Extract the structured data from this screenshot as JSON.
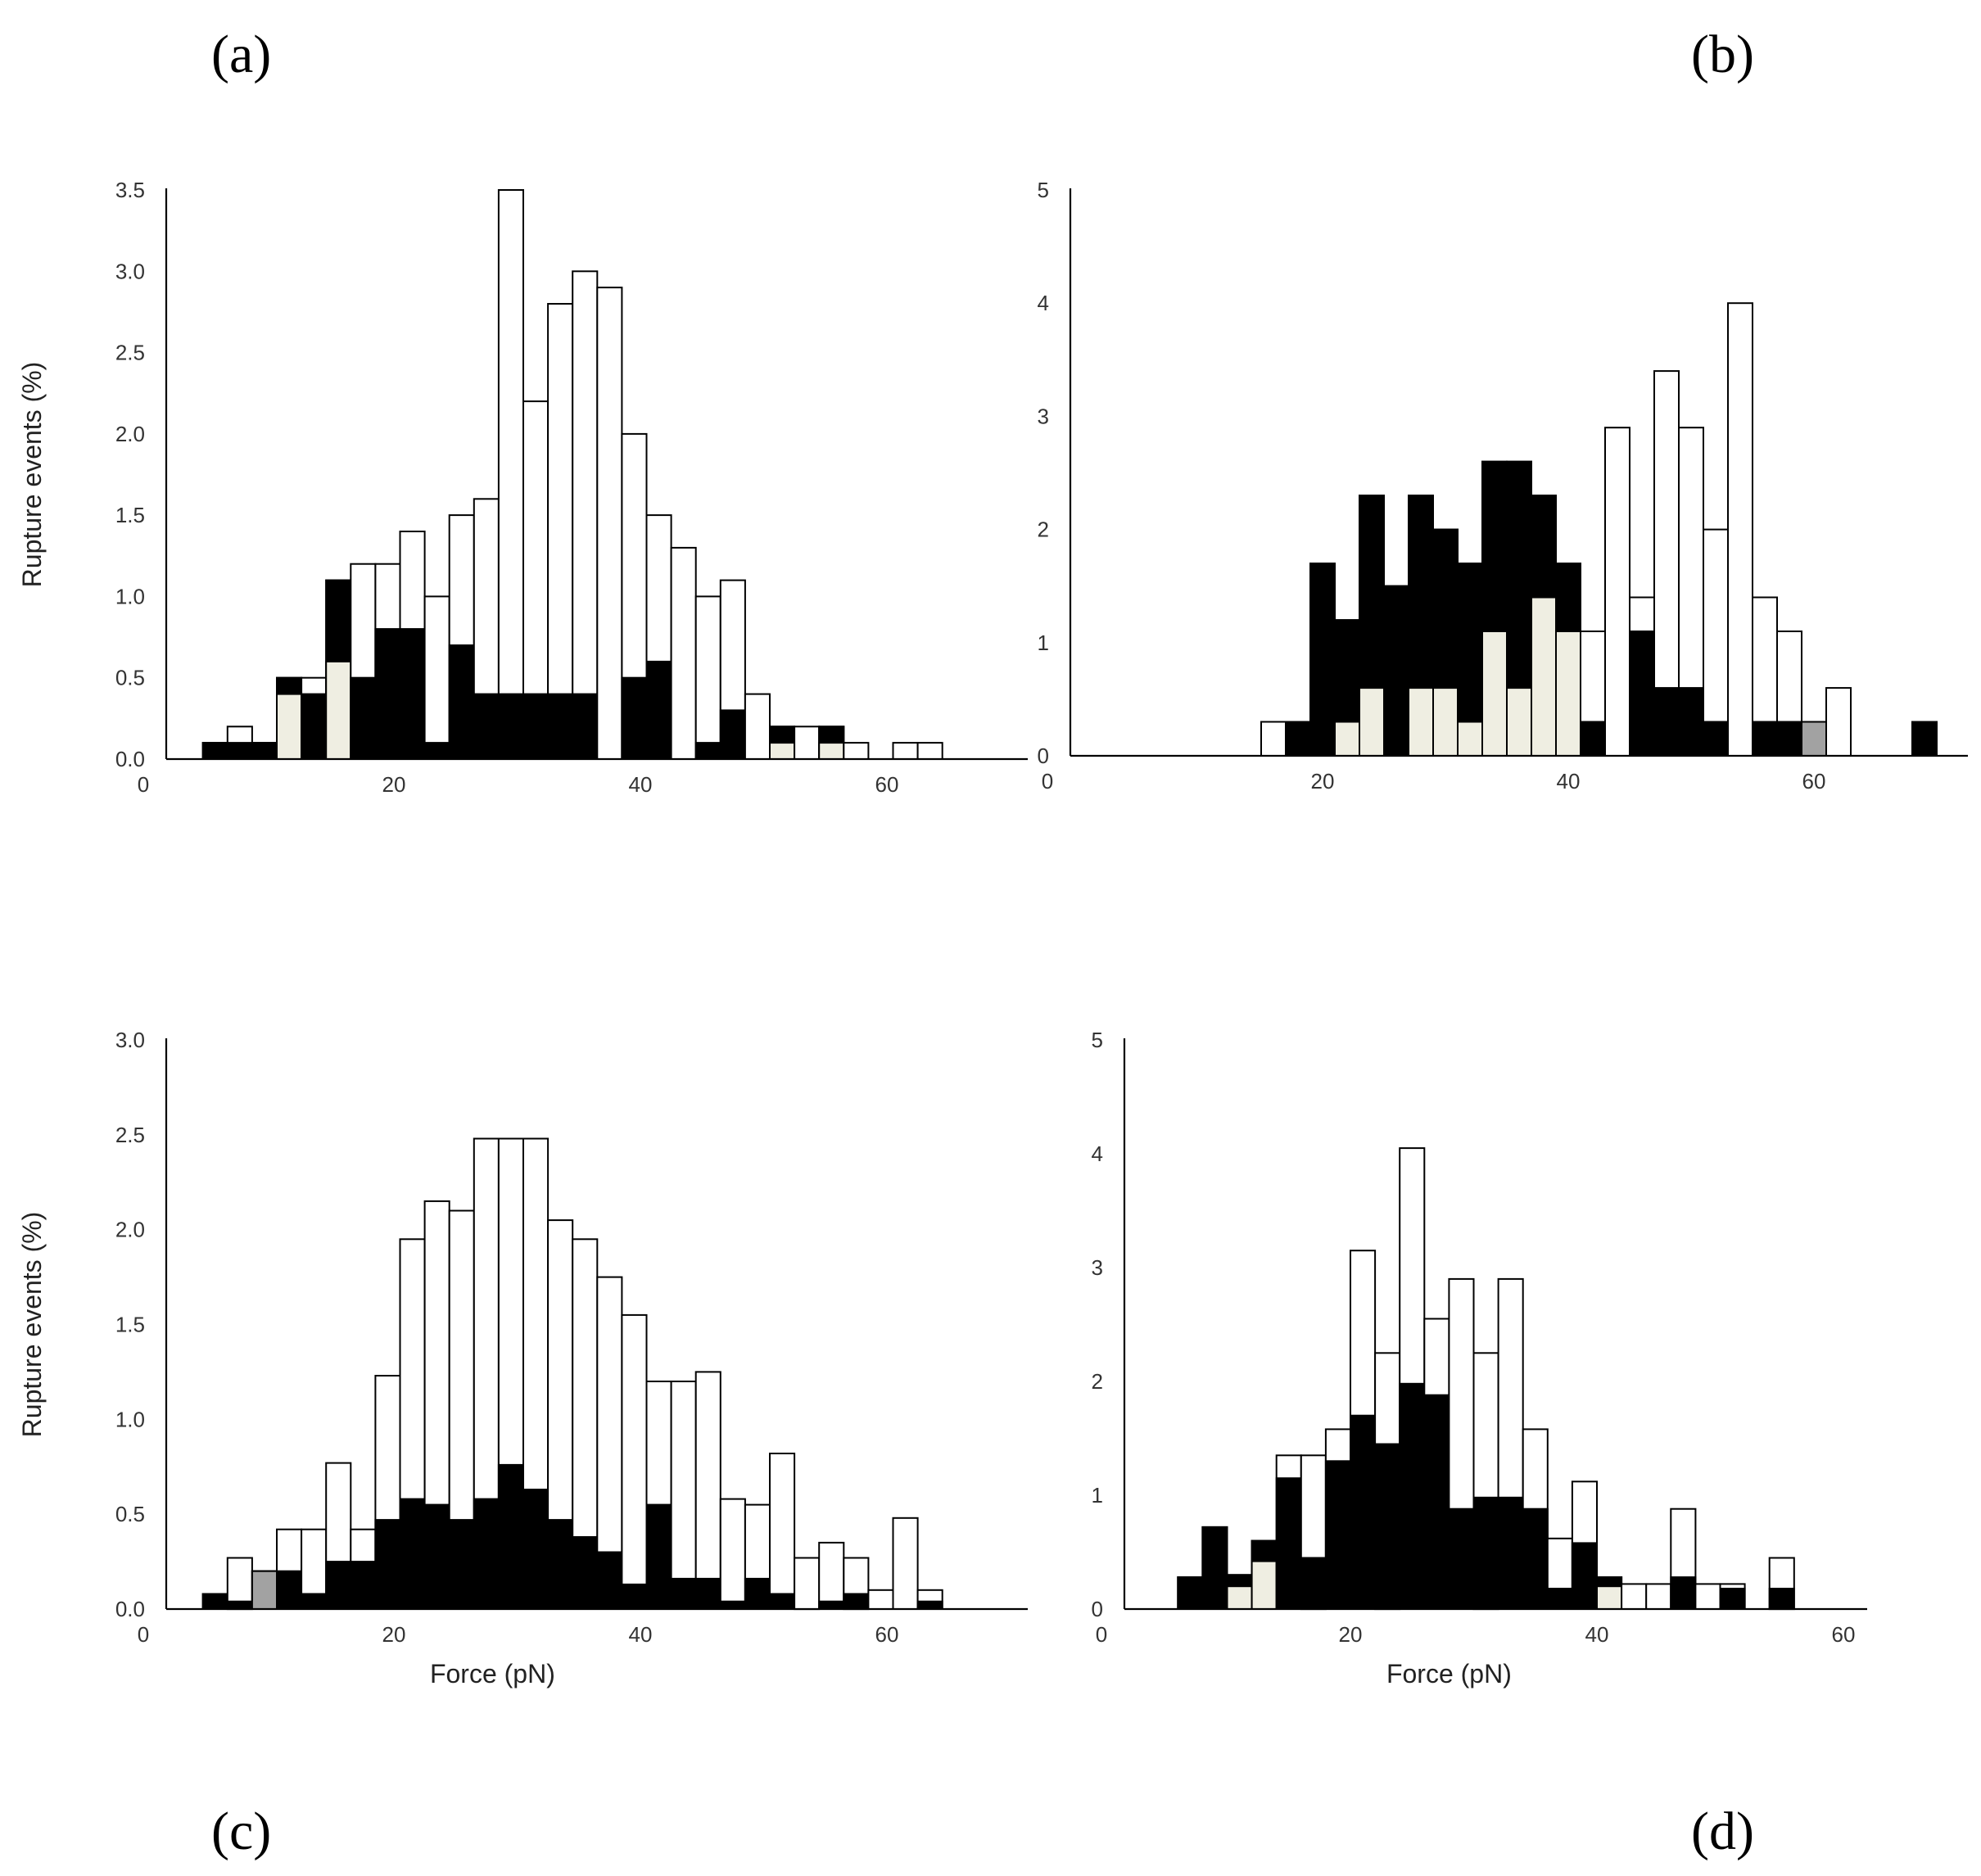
{
  "chart_data": [
    {
      "panel": "(a)",
      "type": "bar",
      "ylabel": "Rupture events (%)",
      "xlabel": "",
      "xlim": [
        0,
        70
      ],
      "ylim": [
        0,
        3.5
      ],
      "x_ticks": [
        0,
        20,
        40,
        60
      ],
      "y_ticks": [
        "0.0",
        "0.5",
        "1.0",
        "1.5",
        "2.0",
        "2.5",
        "3.0",
        "3.5"
      ],
      "bin_width": 2,
      "bins": [
        {
          "x": 5.5,
          "total": 0.1,
          "black": 0.1,
          "light": 0,
          "gray": 0
        },
        {
          "x": 7.5,
          "total": 0.2,
          "black": 0.1,
          "light": 0,
          "gray": 0
        },
        {
          "x": 9.5,
          "total": 0.1,
          "black": 0.1,
          "light": 0,
          "gray": 0
        },
        {
          "x": 11.5,
          "total": 0.5,
          "black": 0.5,
          "light": 0.4,
          "gray": 0
        },
        {
          "x": 13.5,
          "total": 0.5,
          "black": 0.4,
          "light": 0,
          "gray": 0
        },
        {
          "x": 15.5,
          "total": 1.1,
          "black": 1.1,
          "light": 0.6,
          "gray": 0
        },
        {
          "x": 17.5,
          "total": 1.2,
          "black": 0.5,
          "light": 0,
          "gray": 0
        },
        {
          "x": 19.5,
          "total": 1.2,
          "black": 0.8,
          "light": 0,
          "gray": 0
        },
        {
          "x": 21.5,
          "total": 1.4,
          "black": 0.8,
          "light": 0,
          "gray": 0
        },
        {
          "x": 23.5,
          "total": 1.0,
          "black": 0.1,
          "light": 0,
          "gray": 0
        },
        {
          "x": 25.5,
          "total": 1.5,
          "black": 0.7,
          "light": 0,
          "gray": 0
        },
        {
          "x": 27.5,
          "total": 1.6,
          "black": 0.4,
          "light": 0,
          "gray": 0
        },
        {
          "x": 29.5,
          "total": 3.5,
          "black": 0.4,
          "light": 0,
          "gray": 0
        },
        {
          "x": 31.5,
          "total": 2.2,
          "black": 0.4,
          "light": 0,
          "gray": 0
        },
        {
          "x": 33.5,
          "total": 2.8,
          "black": 0.4,
          "light": 0,
          "gray": 0
        },
        {
          "x": 35.5,
          "total": 3.0,
          "black": 0.4,
          "light": 0,
          "gray": 0
        },
        {
          "x": 37.5,
          "total": 2.9,
          "black": 0,
          "light": 0,
          "gray": 0
        },
        {
          "x": 39.5,
          "total": 2.0,
          "black": 0.5,
          "light": 0,
          "gray": 0
        },
        {
          "x": 41.5,
          "total": 1.5,
          "black": 0.6,
          "light": 0,
          "gray": 0
        },
        {
          "x": 43.5,
          "total": 1.3,
          "black": 0,
          "light": 0,
          "gray": 0
        },
        {
          "x": 45.5,
          "total": 1.0,
          "black": 0.1,
          "light": 0,
          "gray": 0
        },
        {
          "x": 47.5,
          "total": 1.1,
          "black": 0.3,
          "light": 0,
          "gray": 0
        },
        {
          "x": 49.5,
          "total": 0.4,
          "black": 0,
          "light": 0,
          "gray": 0
        },
        {
          "x": 51.5,
          "total": 0.2,
          "black": 0.2,
          "light": 0.1,
          "gray": 0
        },
        {
          "x": 53.5,
          "total": 0.2,
          "black": 0,
          "light": 0,
          "gray": 0
        },
        {
          "x": 55.5,
          "total": 0.2,
          "black": 0.2,
          "light": 0.1,
          "gray": 0
        },
        {
          "x": 57.5,
          "total": 0.1,
          "black": 0,
          "light": 0,
          "gray": 0
        },
        {
          "x": 61.5,
          "total": 0.1,
          "black": 0,
          "light": 0,
          "gray": 0
        },
        {
          "x": 63.5,
          "total": 0.1,
          "black": 0,
          "light": 0,
          "gray": 0
        }
      ]
    },
    {
      "panel": "(b)",
      "type": "bar",
      "ylabel": "",
      "xlabel": "",
      "xlim": [
        0,
        72
      ],
      "ylim": [
        0,
        5
      ],
      "x_ticks": [
        0,
        20,
        40,
        60
      ],
      "y_ticks": [
        "0",
        "1",
        "2",
        "3",
        "4",
        "5"
      ],
      "bin_width": 2,
      "bins": [
        {
          "x": 16,
          "total": 0.3,
          "black": 0,
          "light": 0,
          "gray": 0
        },
        {
          "x": 18,
          "total": 0.3,
          "black": 0.3,
          "light": 0,
          "gray": 0
        },
        {
          "x": 20,
          "total": 1.7,
          "black": 1.7,
          "light": 0,
          "gray": 0
        },
        {
          "x": 22,
          "total": 1.2,
          "black": 1.2,
          "light": 0.3,
          "gray": 0
        },
        {
          "x": 24,
          "total": 2.3,
          "black": 2.3,
          "light": 0.6,
          "gray": 0
        },
        {
          "x": 26,
          "total": 1.5,
          "black": 1.5,
          "light": 0,
          "gray": 0
        },
        {
          "x": 28,
          "total": 2.3,
          "black": 2.3,
          "light": 0.6,
          "gray": 0
        },
        {
          "x": 30,
          "total": 2.0,
          "black": 2.0,
          "light": 0.6,
          "gray": 0
        },
        {
          "x": 32,
          "total": 1.7,
          "black": 1.7,
          "light": 0.3,
          "gray": 0
        },
        {
          "x": 34,
          "total": 2.6,
          "black": 2.6,
          "light": 1.1,
          "gray": 0
        },
        {
          "x": 36,
          "total": 2.6,
          "black": 2.6,
          "light": 0.6,
          "gray": 0
        },
        {
          "x": 38,
          "total": 2.3,
          "black": 2.3,
          "light": 1.4,
          "gray": 0
        },
        {
          "x": 40,
          "total": 1.7,
          "black": 1.7,
          "light": 1.1,
          "gray": 0
        },
        {
          "x": 42,
          "total": 1.1,
          "black": 0.3,
          "light": 0,
          "gray": 0
        },
        {
          "x": 44,
          "total": 2.9,
          "black": 0,
          "light": 0,
          "gray": 0
        },
        {
          "x": 46,
          "total": 1.4,
          "black": 1.1,
          "light": 0,
          "gray": 0
        },
        {
          "x": 48,
          "total": 3.4,
          "black": 0.6,
          "light": 0,
          "gray": 0
        },
        {
          "x": 50,
          "total": 2.9,
          "black": 0.6,
          "light": 0,
          "gray": 0
        },
        {
          "x": 52,
          "total": 2.0,
          "black": 0.3,
          "light": 0,
          "gray": 0
        },
        {
          "x": 54,
          "total": 4.0,
          "black": 0,
          "light": 0,
          "gray": 0
        },
        {
          "x": 56,
          "total": 1.4,
          "black": 0.3,
          "light": 0,
          "gray": 0
        },
        {
          "x": 58,
          "total": 1.1,
          "black": 0.3,
          "light": 0,
          "gray": 0
        },
        {
          "x": 60,
          "total": 0.3,
          "black": 0.3,
          "light": 0,
          "gray": 0.3
        },
        {
          "x": 62,
          "total": 0.6,
          "black": 0,
          "light": 0,
          "gray": 0
        },
        {
          "x": 69,
          "total": 0.3,
          "black": 0.3,
          "light": 0,
          "gray": 0
        }
      ]
    },
    {
      "panel": "(c)",
      "type": "bar",
      "ylabel": "Rupture events (%)",
      "xlabel": "Force (pN)",
      "xlim": [
        0,
        70
      ],
      "ylim": [
        0,
        3.0
      ],
      "x_ticks": [
        0,
        20,
        40,
        60
      ],
      "y_ticks": [
        "0.0",
        "0.5",
        "1.0",
        "1.5",
        "2.0",
        "2.5",
        "3.0"
      ],
      "bin_width": 2,
      "bins": [
        {
          "x": 5.5,
          "total": 0.08,
          "black": 0.08,
          "light": 0,
          "gray": 0
        },
        {
          "x": 7.5,
          "total": 0.27,
          "black": 0.04,
          "light": 0,
          "gray": 0
        },
        {
          "x": 9.5,
          "total": 0.2,
          "black": 0.2,
          "light": 0,
          "gray": 0.2
        },
        {
          "x": 11.5,
          "total": 0.42,
          "black": 0.2,
          "light": 0,
          "gray": 0
        },
        {
          "x": 13.5,
          "total": 0.42,
          "black": 0.08,
          "light": 0,
          "gray": 0
        },
        {
          "x": 15.5,
          "total": 0.77,
          "black": 0.25,
          "light": 0,
          "gray": 0
        },
        {
          "x": 17.5,
          "total": 0.42,
          "black": 0.25,
          "light": 0,
          "gray": 0
        },
        {
          "x": 19.5,
          "total": 1.23,
          "black": 0.47,
          "light": 0,
          "gray": 0
        },
        {
          "x": 21.5,
          "total": 1.95,
          "black": 0.58,
          "light": 0,
          "gray": 0
        },
        {
          "x": 23.5,
          "total": 2.15,
          "black": 0.55,
          "light": 0,
          "gray": 0
        },
        {
          "x": 25.5,
          "total": 2.1,
          "black": 0.47,
          "light": 0,
          "gray": 0
        },
        {
          "x": 27.5,
          "total": 2.48,
          "black": 0.58,
          "light": 0,
          "gray": 0
        },
        {
          "x": 29.5,
          "total": 2.48,
          "black": 0.76,
          "light": 0,
          "gray": 0
        },
        {
          "x": 31.5,
          "total": 2.48,
          "black": 0.63,
          "light": 0,
          "gray": 0
        },
        {
          "x": 33.5,
          "total": 2.05,
          "black": 0.47,
          "light": 0,
          "gray": 0
        },
        {
          "x": 35.5,
          "total": 1.95,
          "black": 0.38,
          "light": 0,
          "gray": 0
        },
        {
          "x": 37.5,
          "total": 1.75,
          "black": 0.3,
          "light": 0,
          "gray": 0
        },
        {
          "x": 39.5,
          "total": 1.55,
          "black": 0.13,
          "light": 0,
          "gray": 0
        },
        {
          "x": 41.5,
          "total": 1.2,
          "black": 0.55,
          "light": 0,
          "gray": 0
        },
        {
          "x": 43.5,
          "total": 1.2,
          "black": 0.16,
          "light": 0,
          "gray": 0
        },
        {
          "x": 45.5,
          "total": 1.25,
          "black": 0.16,
          "light": 0,
          "gray": 0
        },
        {
          "x": 47.5,
          "total": 0.58,
          "black": 0.04,
          "light": 0,
          "gray": 0
        },
        {
          "x": 49.5,
          "total": 0.55,
          "black": 0.16,
          "light": 0,
          "gray": 0
        },
        {
          "x": 51.5,
          "total": 0.82,
          "black": 0.08,
          "light": 0,
          "gray": 0
        },
        {
          "x": 53.5,
          "total": 0.27,
          "black": 0,
          "light": 0,
          "gray": 0
        },
        {
          "x": 55.5,
          "total": 0.35,
          "black": 0.04,
          "light": 0,
          "gray": 0
        },
        {
          "x": 57.5,
          "total": 0.27,
          "black": 0.08,
          "light": 0,
          "gray": 0
        },
        {
          "x": 59.5,
          "total": 0.1,
          "black": 0,
          "light": 0,
          "gray": 0
        },
        {
          "x": 61.5,
          "total": 0.48,
          "black": 0,
          "light": 0,
          "gray": 0
        },
        {
          "x": 63.5,
          "total": 0.1,
          "black": 0.04,
          "light": 0,
          "gray": 0
        }
      ]
    },
    {
      "panel": "(d)",
      "type": "bar",
      "ylabel": "",
      "xlabel": "Force (pN)",
      "xlim": [
        0,
        62
      ],
      "ylim": [
        0,
        5
      ],
      "x_ticks": [
        0,
        20,
        40,
        60
      ],
      "y_ticks": [
        "0",
        "1",
        "2",
        "3",
        "4",
        "5"
      ],
      "bin_width": 2,
      "bins": [
        {
          "x": 7,
          "total": 0.28,
          "black": 0.28,
          "light": 0,
          "gray": 0
        },
        {
          "x": 9,
          "total": 0.72,
          "black": 0.72,
          "light": 0,
          "gray": 0
        },
        {
          "x": 11,
          "total": 0.3,
          "black": 0.3,
          "light": 0.2,
          "gray": 0
        },
        {
          "x": 13,
          "total": 0.6,
          "black": 0.6,
          "light": 0.42,
          "gray": 0
        },
        {
          "x": 15,
          "total": 1.35,
          "black": 1.15,
          "light": 0,
          "gray": 0
        },
        {
          "x": 17,
          "total": 1.35,
          "black": 0.45,
          "light": 0,
          "gray": 0
        },
        {
          "x": 19,
          "total": 1.58,
          "black": 1.3,
          "light": 0,
          "gray": 0
        },
        {
          "x": 21,
          "total": 3.15,
          "black": 1.7,
          "light": 0,
          "gray": 0
        },
        {
          "x": 23,
          "total": 2.25,
          "black": 1.45,
          "light": 0,
          "gray": 0
        },
        {
          "x": 25,
          "total": 4.05,
          "black": 1.98,
          "light": 0,
          "gray": 0
        },
        {
          "x": 27,
          "total": 2.55,
          "black": 1.88,
          "light": 0,
          "gray": 0
        },
        {
          "x": 29,
          "total": 2.9,
          "black": 0.88,
          "light": 0,
          "gray": 0
        },
        {
          "x": 31,
          "total": 2.25,
          "black": 0.98,
          "light": 0,
          "gray": 0
        },
        {
          "x": 33,
          "total": 2.9,
          "black": 0.98,
          "light": 0,
          "gray": 0
        },
        {
          "x": 35,
          "total": 1.58,
          "black": 0.88,
          "light": 0,
          "gray": 0
        },
        {
          "x": 37,
          "total": 0.62,
          "black": 0.18,
          "light": 0,
          "gray": 0
        },
        {
          "x": 39,
          "total": 1.12,
          "black": 0.58,
          "light": 0,
          "gray": 0
        },
        {
          "x": 41,
          "total": 0.28,
          "black": 0.28,
          "light": 0.2,
          "gray": 0
        },
        {
          "x": 43,
          "total": 0.22,
          "black": 0,
          "light": 0,
          "gray": 0
        },
        {
          "x": 45,
          "total": 0.22,
          "black": 0,
          "light": 0,
          "gray": 0
        },
        {
          "x": 47,
          "total": 0.88,
          "black": 0.28,
          "light": 0,
          "gray": 0
        },
        {
          "x": 49,
          "total": 0.22,
          "black": 0,
          "light": 0,
          "gray": 0
        },
        {
          "x": 51,
          "total": 0.22,
          "black": 0.18,
          "light": 0,
          "gray": 0
        },
        {
          "x": 55,
          "total": 0.45,
          "black": 0.18,
          "light": 0,
          "gray": 0
        }
      ]
    }
  ],
  "colors": {
    "total": "#ffffff",
    "black": "#000000",
    "light": "#efeee2",
    "gray": "#a2a2a2",
    "outline": "#000000"
  }
}
